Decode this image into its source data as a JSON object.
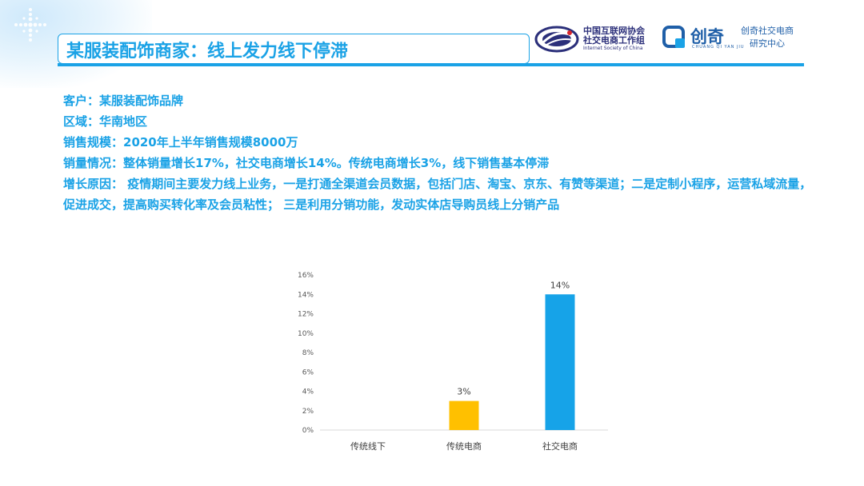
{
  "slide": {
    "title": "某服装配饰商家：线上发力线下停滞"
  },
  "logos": {
    "isc_cn_line1": "中国互联网协会",
    "isc_cn_line2": "社交电商工作组",
    "isc_en": "Internet Society of China",
    "chuangqi_name": "创奇",
    "chuangqi_pinyin": "CHUANG QI YAN JIU",
    "chuangqi_sub_line1": "创奇社交电商",
    "chuangqi_sub_line2": "研究中心"
  },
  "info": {
    "client": "客户：某服装配饰品牌",
    "region": "区域：华南地区",
    "sales_scale": "销售规模：2020年上半年销售规模8000万",
    "sales_volume": "销量情况：整体销量增长17%，社交电商增长14%。传统电商增长3%，线下销售基本停滞",
    "growth_reason": "增长原因： 疫情期间主要发力线上业务，一是打通全渠道会员数据，包括门店、淘宝、京东、有赞等渠道；二是定制小程序，运营私域流量，促进成交，提高购买转化率及会员粘性；  三是利用分销功能，发动实体店导购员线上分销产品"
  },
  "chart_data": {
    "type": "bar",
    "title": "",
    "xlabel": "",
    "ylabel": "",
    "categories": [
      "传统线下",
      "传统电商",
      "社交电商"
    ],
    "values": [
      0,
      3,
      14
    ],
    "data_labels": [
      "",
      "3%",
      "14%"
    ],
    "bar_colors": [
      "#1aa2e6",
      "#ffc000",
      "#16a3e8"
    ],
    "ylim": [
      0,
      16
    ],
    "y_ticks": [
      0,
      2,
      4,
      6,
      8,
      10,
      12,
      14,
      16
    ],
    "y_tick_labels": [
      "0%",
      "2%",
      "4%",
      "6%",
      "8%",
      "10%",
      "12%",
      "14%",
      "16%"
    ],
    "grid": false,
    "legend": "none"
  }
}
